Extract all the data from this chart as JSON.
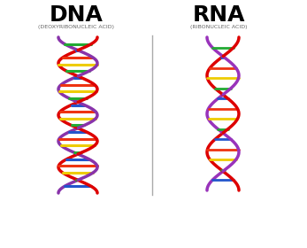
{
  "dna_title": "DNA",
  "dna_subtitle": "(DEOXYRIBONUCLEIC ACID)",
  "rna_title": "RNA",
  "rna_subtitle": "(RIBONUCLEIC ACID)",
  "background_color": "#ffffff",
  "dna_strand1_color": "#dd0000",
  "dna_strand2_color": "#8833aa",
  "rna_strand1_color": "#dd0000",
  "rna_strand2_color": "#9933bb",
  "divider_color": "#aaaaaa",
  "title_fontsize": 18,
  "subtitle_fontsize": 4.5,
  "title_fontweight": "bold",
  "rung_colors_cycle": [
    "#2255cc",
    "#22aa33",
    "#eecc00",
    "#ee3311",
    "#2255cc",
    "#22aa33",
    "#eecc00",
    "#ee3311",
    "#2255cc",
    "#22aa33",
    "#eecc00",
    "#ee3311",
    "#2255cc",
    "#22aa33",
    "#eecc00",
    "#ee3311",
    "#2255cc",
    "#22aa33",
    "#eecc00",
    "#ee3311",
    "#2255cc",
    "#22aa33",
    "#eecc00",
    "#ee3311"
  ]
}
